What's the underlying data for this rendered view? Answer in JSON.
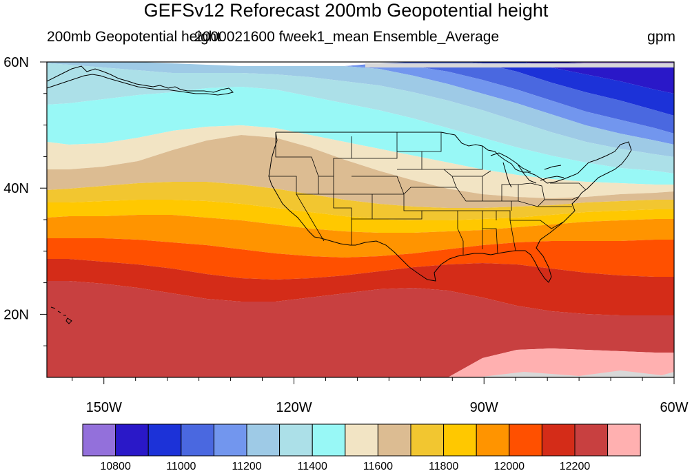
{
  "title": "GEFSv12 Reforecast 200mb Geopotential height",
  "subtitle_left": "200mb Geopotential height",
  "subtitle_center": "2000021600 fweek1_mean Ensemble_Average",
  "subtitle_right": "gpm",
  "axes": {
    "lat_labels": [
      "60N",
      "40N",
      "20N"
    ],
    "lon_labels": [
      "150W",
      "120W",
      "90W",
      "60W"
    ],
    "lon_range": [
      -159,
      -60
    ],
    "lat_range": [
      10,
      60
    ]
  },
  "colorbar": {
    "colors": [
      "#9370db",
      "#2a18c8",
      "#1c32d8",
      "#4a68e0",
      "#7296ee",
      "#9ecae6",
      "#ace0e8",
      "#98f8f6",
      "#f2e4c4",
      "#dcbc92",
      "#f2c630",
      "#ffc800",
      "#ff9400",
      "#ff5000",
      "#d42c18",
      "#c84040",
      "#ffb0b0"
    ],
    "labels": [
      "10800",
      "11000",
      "11200",
      "11400",
      "11600",
      "11800",
      "12000",
      "12200"
    ]
  },
  "chart_data": {
    "type": "heatmap",
    "title": "GEFSv12 Reforecast 200mb Geopotential height",
    "variable": "200mb Geopotential height",
    "units": "gpm",
    "contour_levels": [
      10800,
      10900,
      11000,
      11100,
      11200,
      11300,
      11400,
      11500,
      11600,
      11700,
      11800,
      11900,
      12000,
      12100,
      12200,
      12300
    ]
  }
}
